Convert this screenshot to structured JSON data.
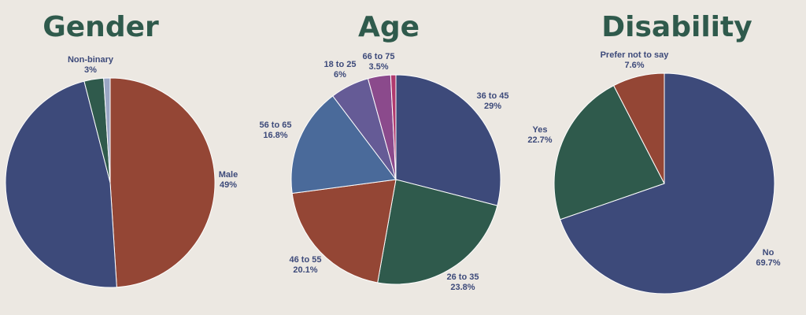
{
  "chart_data": [
    {
      "type": "pie",
      "title": "Gender",
      "slices": [
        {
          "label": "Male",
          "value": 49,
          "value_label": "49%",
          "color": "#944635"
        },
        {
          "label": "",
          "value": 47,
          "value_label": "",
          "color": "#3d4a7a"
        },
        {
          "label": "Non-binary",
          "value": 3,
          "value_label": "3%",
          "color": "#2f5a4c"
        },
        {
          "label": "",
          "value": 1,
          "value_label": "",
          "color": "#9aa6c4"
        }
      ]
    },
    {
      "type": "pie",
      "title": "Age",
      "slices": [
        {
          "label": "36 to 45",
          "value": 29,
          "value_label": "29%",
          "color": "#3d4a7a"
        },
        {
          "label": "26 to 35",
          "value": 23.8,
          "value_label": "23.8%",
          "color": "#2f5a4c"
        },
        {
          "label": "46 to 55",
          "value": 20.1,
          "value_label": "20.1%",
          "color": "#944635"
        },
        {
          "label": "56 to 65",
          "value": 16.8,
          "value_label": "16.8%",
          "color": "#4a6a9a"
        },
        {
          "label": "18 to 25",
          "value": 6,
          "value_label": "6%",
          "color": "#655b96"
        },
        {
          "label": "66 to 75",
          "value": 3.5,
          "value_label": "3.5%",
          "color": "#8b4a8c"
        },
        {
          "label": "",
          "value": 0.8,
          "value_label": "",
          "color": "#b03a6e"
        }
      ]
    },
    {
      "type": "pie",
      "title": "Disability",
      "slices": [
        {
          "label": "No",
          "value": 69.7,
          "value_label": "69.7%",
          "color": "#3d4a7a"
        },
        {
          "label": "Yes",
          "value": 22.7,
          "value_label": "22.7%",
          "color": "#2f5a4c"
        },
        {
          "label": "Prefer not to say",
          "value": 7.6,
          "value_label": "7.6%",
          "color": "#944635"
        }
      ]
    }
  ]
}
